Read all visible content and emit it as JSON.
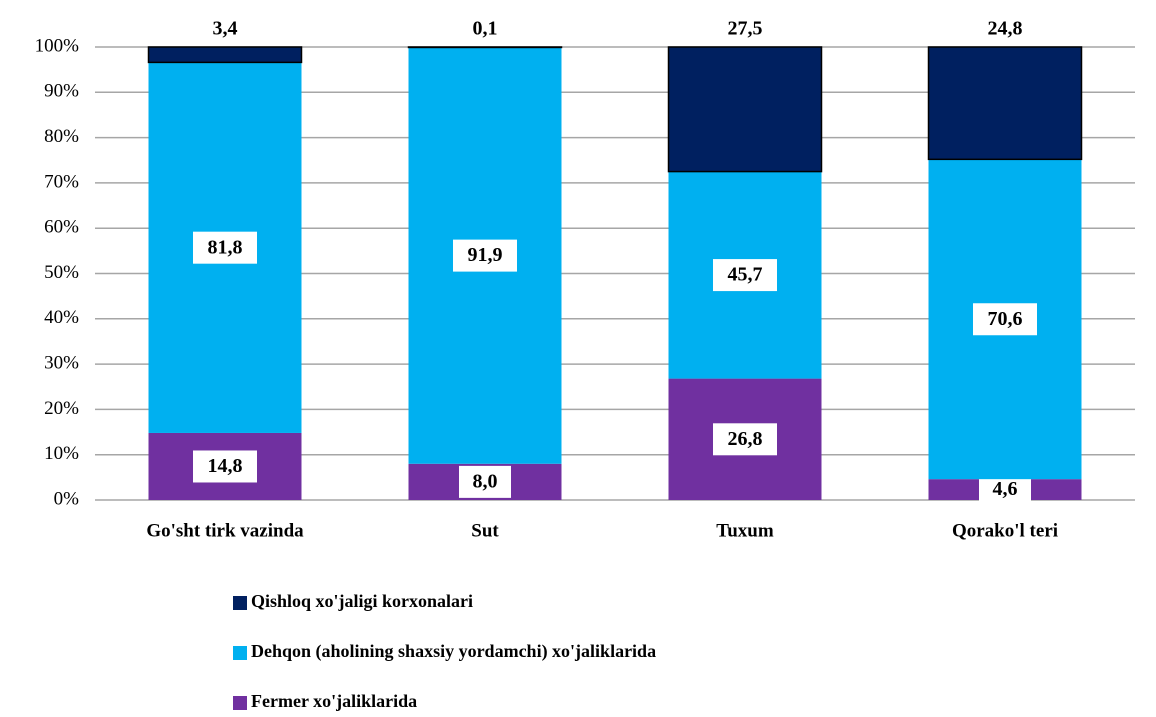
{
  "chart_data": {
    "type": "stacked_bar",
    "categories": [
      "Go'sht tirk vazinda",
      "Sut",
      "Tuxum",
      "Qorako'l teri"
    ],
    "series": [
      {
        "name": "Fermer xo'jaliklarida",
        "color": "#7030a0",
        "values": [
          14.8,
          8.0,
          26.8,
          4.6
        ],
        "value_labels": [
          "14,8",
          "8,0",
          "26,8",
          "4,6"
        ]
      },
      {
        "name": "Dehqon (aholining shaxsiy yordamchi) xo'jaliklarida",
        "color": "#00b0f0",
        "values": [
          81.8,
          91.9,
          45.7,
          70.6
        ],
        "value_labels": [
          "81,8",
          "91,9",
          "45,7",
          "70,6"
        ]
      },
      {
        "name": "Qishloq xo'jaligi korxonalari",
        "color": "#002060",
        "values": [
          3.4,
          0.1,
          27.5,
          24.8
        ],
        "value_labels": [
          "3,4",
          "0,1",
          "27,5",
          "24,8"
        ]
      }
    ],
    "ylim": [
      0,
      100
    ],
    "yticks": [
      {
        "value": 0,
        "label": "0%"
      },
      {
        "value": 10,
        "label": "10%"
      },
      {
        "value": 20,
        "label": "20%"
      },
      {
        "value": 30,
        "label": "30%"
      },
      {
        "value": 40,
        "label": "40%"
      },
      {
        "value": 50,
        "label": "50%"
      },
      {
        "value": 60,
        "label": "60%"
      },
      {
        "value": 70,
        "label": "70%"
      },
      {
        "value": 80,
        "label": "80%"
      },
      {
        "value": 90,
        "label": "90%"
      },
      {
        "value": 100,
        "label": "100%"
      }
    ],
    "grid": true,
    "legend": "bottom"
  }
}
